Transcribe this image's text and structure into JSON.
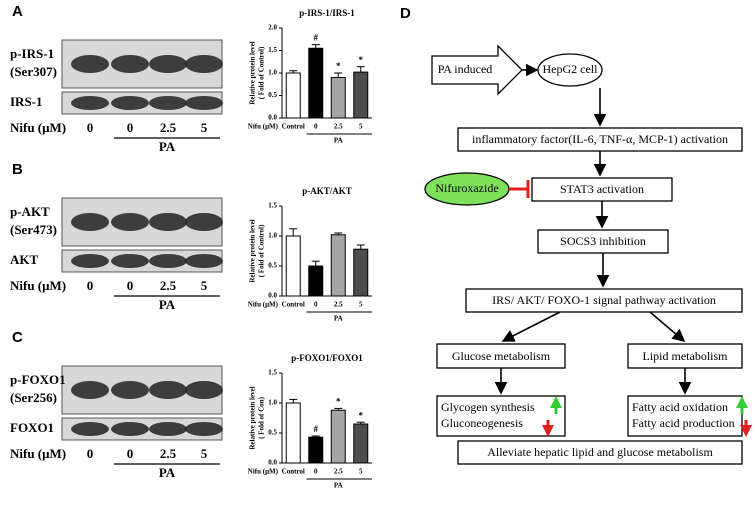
{
  "blots": [
    {
      "label": "A",
      "rows": [
        [
          "p-IRS-1",
          "(Ser307)"
        ],
        [
          "IRS-1"
        ]
      ],
      "treatment": "Nifu (μM)",
      "lanes": [
        "0",
        "0",
        "2.5",
        "5"
      ],
      "group": "PA"
    },
    {
      "label": "B",
      "rows": [
        [
          "p-AKT",
          "(Ser473)"
        ],
        [
          "AKT"
        ]
      ],
      "treatment": "Nifu (μM)",
      "lanes": [
        "0",
        "0",
        "2.5",
        "5"
      ],
      "group": "PA"
    },
    {
      "label": "C",
      "rows": [
        [
          "p-FOXO1",
          "(Ser256)"
        ],
        [
          "FOXO1"
        ]
      ],
      "treatment": "Nifu (μM)",
      "lanes": [
        "0",
        "0",
        "2.5",
        "5"
      ],
      "group": "PA"
    }
  ],
  "chart_data": [
    {
      "type": "bar",
      "title": "p-IRS-1/IRS-1",
      "ylabel": [
        "Relative protein level",
        "( Fold of Control)"
      ],
      "xlabel": "Nifu (μM)",
      "categories": [
        "Control",
        "0",
        "2.5",
        "5"
      ],
      "group": "PA",
      "values": [
        1.0,
        1.55,
        0.9,
        1.02
      ],
      "errors": [
        0.05,
        0.08,
        0.1,
        0.12
      ],
      "annotations": [
        null,
        "#",
        "*",
        "*"
      ],
      "colors": [
        "#ffffff",
        "#000000",
        "#a6a6a6",
        "#4d4d4d"
      ],
      "ylim": [
        0,
        2
      ],
      "yticks": [
        {
          "value": 0,
          "label": "0.0"
        },
        {
          "value": 0.5,
          "label": "0.5"
        },
        {
          "value": 1,
          "label": "1.0"
        },
        {
          "value": 1.5,
          "label": "1.5"
        },
        {
          "value": 2,
          "label": "2.0"
        }
      ]
    },
    {
      "type": "bar",
      "title": "p-AKT/AKT",
      "ylabel": [
        "Relative protein level",
        "( Fold of Control)"
      ],
      "xlabel": "Nifu (μM)",
      "categories": [
        "Control",
        "0",
        "2.5",
        "5"
      ],
      "group": "PA",
      "values": [
        1.0,
        0.5,
        1.02,
        0.78
      ],
      "errors": [
        0.12,
        0.08,
        0.03,
        0.07
      ],
      "annotations": [
        null,
        null,
        null,
        null
      ],
      "colors": [
        "#ffffff",
        "#000000",
        "#a6a6a6",
        "#4d4d4d"
      ],
      "ylim": [
        0,
        1.5
      ],
      "yticks": [
        {
          "value": 0,
          "label": "0.0"
        },
        {
          "value": 0.5,
          "label": "0.5"
        },
        {
          "value": 1,
          "label": "1.0"
        },
        {
          "value": 1.5,
          "label": "1.5"
        }
      ]
    },
    {
      "type": "bar",
      "title": "p-FOXO1/FOXO1",
      "ylabel": [
        "Relative protein level",
        "( Fold of Con)"
      ],
      "xlabel": "Nifu (μM)",
      "categories": [
        "Control",
        "0",
        "2.5",
        "5"
      ],
      "group": "PA",
      "values": [
        1.0,
        0.43,
        0.88,
        0.65
      ],
      "errors": [
        0.06,
        0.02,
        0.03,
        0.03
      ],
      "annotations": [
        null,
        "#",
        "*",
        "*"
      ],
      "colors": [
        "#ffffff",
        "#000000",
        "#a6a6a6",
        "#4d4d4d"
      ],
      "ylim": [
        0,
        1.5
      ],
      "yticks": [
        {
          "value": 0,
          "label": "0.0"
        },
        {
          "value": 0.5,
          "label": "0.5"
        },
        {
          "value": 1,
          "label": "1.0"
        },
        {
          "value": 1.5,
          "label": "1.5"
        }
      ]
    }
  ],
  "diagram": {
    "label": "D",
    "nodes": [
      [
        "PA induced"
      ],
      [
        "HepG2 cell"
      ],
      [
        "inflammatory factor(IL-6, TNF-α, MCP-1) activation"
      ],
      [
        "Nifuroxazide"
      ],
      [
        "STAT3 activation"
      ],
      [
        "SOCS3 inhibition"
      ],
      [
        "IRS/ AKT/ FOXO-1 signal pathway activation"
      ],
      [
        "Glucose metabolism"
      ],
      [
        "Lipid metabolism"
      ],
      [
        "Glycogen synthesis",
        "Gluconeogenesis"
      ],
      [
        "Fatty acid oxidation",
        "Fatty acid production"
      ],
      [
        "Alleviate hepatic lipid and glucose metabolism"
      ]
    ]
  }
}
